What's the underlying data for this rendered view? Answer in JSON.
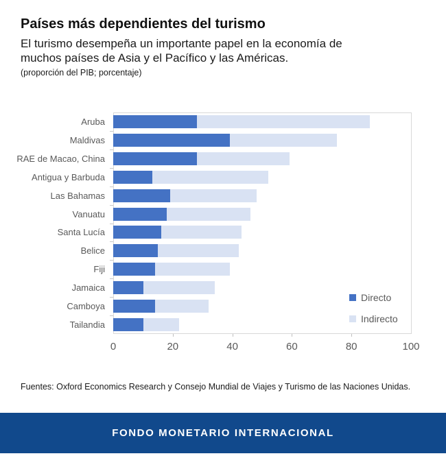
{
  "header": {
    "title": "Países más dependientes del turismo",
    "subtitle_line1": "El turismo desempeña un importante papel en la economía de",
    "subtitle_line2": "muchos países de Asia y el Pacífico y las Américas.",
    "units": "(proporción del PIB; porcentaje)"
  },
  "chart_data": {
    "type": "bar",
    "orientation": "horizontal",
    "stacked": true,
    "title": "Países más dependientes del turismo",
    "xlabel": "proporción del PIB; porcentaje",
    "categories": [
      "Aruba",
      "Maldivas",
      "RAE de Macao, China",
      "Antigua y Barbuda",
      "Las Bahamas",
      "Vanuatu",
      "Santa Lucía",
      "Belice",
      "Fiji",
      "Jamaica",
      "Camboya",
      "Tailandia"
    ],
    "series": [
      {
        "name": "Directo",
        "color": "#4472C4",
        "values": [
          28,
          39,
          28,
          13,
          19,
          18,
          16,
          15,
          14,
          10,
          14,
          10
        ]
      },
      {
        "name": "Indirecto",
        "color": "#D9E2F3",
        "values": [
          58,
          36,
          31,
          39,
          29,
          28,
          27,
          27,
          25,
          24,
          18,
          12
        ]
      }
    ],
    "totals": [
      86,
      75,
      59,
      52,
      48,
      46,
      43,
      42,
      39,
      34,
      32,
      22
    ],
    "xlim": [
      0,
      100
    ],
    "x_ticks": [
      0,
      20,
      40,
      60,
      80,
      100
    ],
    "grid": false,
    "legend_position": "inside-right"
  },
  "legend": {
    "direct_label": "Directo",
    "indirect_label": "Indirecto"
  },
  "source": "Fuentes: Oxford Economics Research y Consejo Mundial de Viajes y Turismo de las Naciones Unidas.",
  "footer": {
    "text": "FONDO MONETARIO INTERNACIONAL",
    "background": "#11498C"
  }
}
